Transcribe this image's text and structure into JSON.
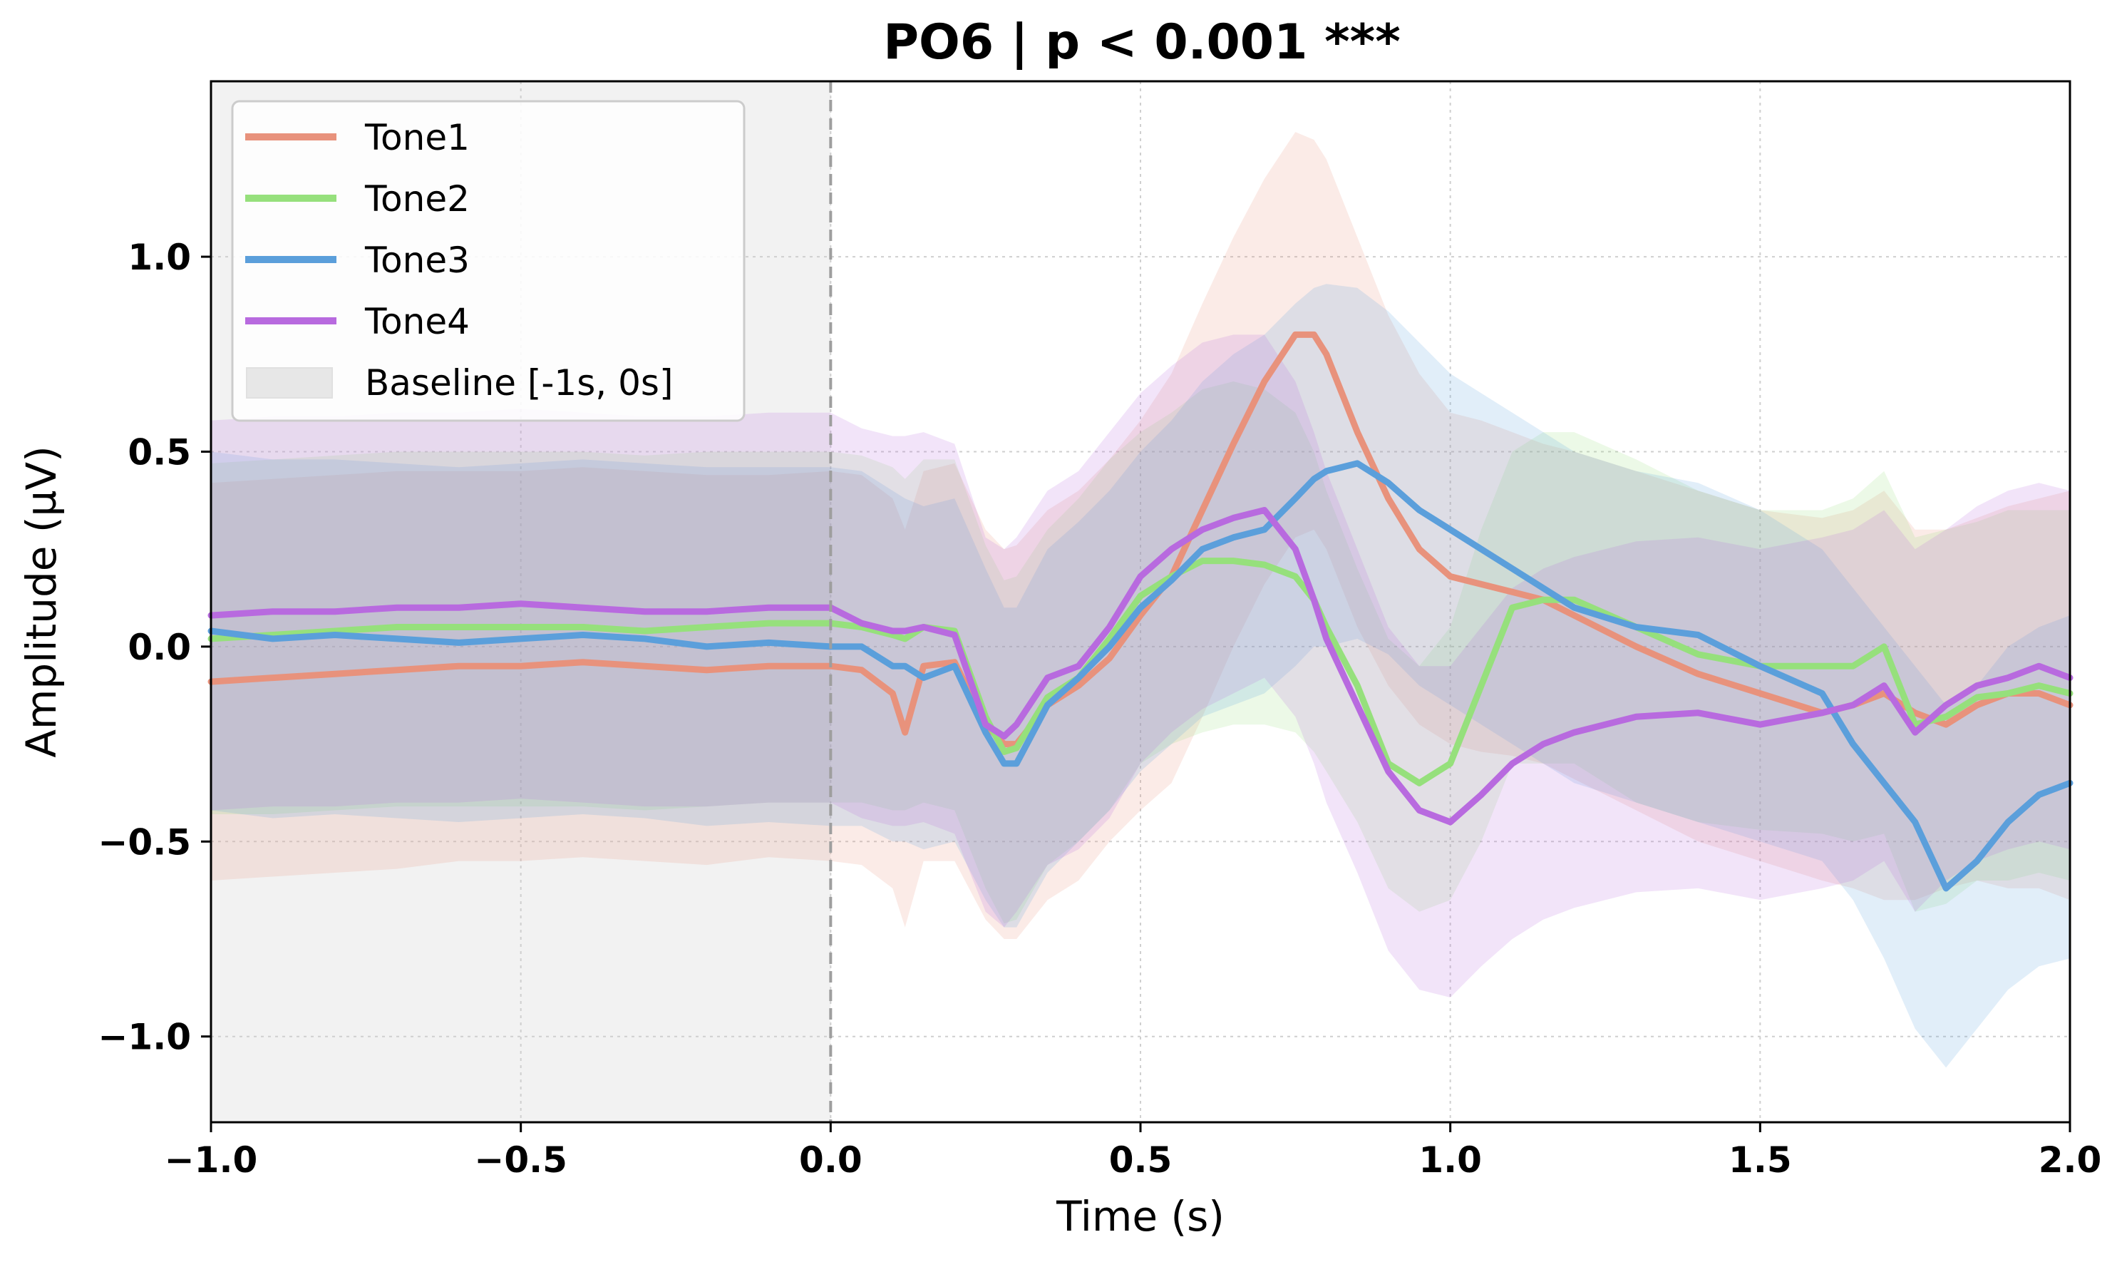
{
  "chart_data": {
    "type": "line",
    "title": "PO6 | p < 0.001 ***",
    "xlabel": "Time (s)",
    "ylabel": "Amplitude (µV)",
    "xlim": [
      -1.0,
      2.0
    ],
    "ylim": [
      -1.22,
      1.45
    ],
    "xticks": [
      -1.0,
      -0.5,
      0.0,
      0.5,
      1.0,
      1.5,
      2.0
    ],
    "xtick_labels": [
      "−1.0",
      "−0.5",
      "0.0",
      "0.5",
      "1.0",
      "1.5",
      "2.0"
    ],
    "yticks": [
      -1.0,
      -0.5,
      0.0,
      0.5,
      1.0
    ],
    "ytick_labels": [
      "−1.0",
      "−0.5",
      "0.0",
      "0.5",
      "1.0"
    ],
    "grid": true,
    "legend_position": "upper-left",
    "baseline": {
      "label": "Baseline [-1s, 0s]",
      "start": -1.0,
      "end": 0.0,
      "color": "#d9d9d9"
    },
    "event_line": {
      "x": 0.0,
      "style": "dashed",
      "color": "#9e9e9e"
    },
    "x": [
      -1.0,
      -0.9,
      -0.8,
      -0.7,
      -0.6,
      -0.5,
      -0.4,
      -0.3,
      -0.2,
      -0.1,
      0.0,
      0.05,
      0.1,
      0.12,
      0.15,
      0.2,
      0.25,
      0.28,
      0.3,
      0.35,
      0.4,
      0.45,
      0.5,
      0.55,
      0.6,
      0.65,
      0.7,
      0.75,
      0.78,
      0.8,
      0.85,
      0.9,
      0.95,
      1.0,
      1.05,
      1.1,
      1.15,
      1.2,
      1.3,
      1.4,
      1.5,
      1.6,
      1.65,
      1.7,
      1.75,
      1.8,
      1.85,
      1.9,
      1.95,
      2.0
    ],
    "series": [
      {
        "name": "Tone1",
        "color": "#e8927c",
        "values": [
          -0.09,
          -0.08,
          -0.07,
          -0.06,
          -0.05,
          -0.05,
          -0.04,
          -0.05,
          -0.06,
          -0.05,
          -0.05,
          -0.06,
          -0.12,
          -0.22,
          -0.05,
          -0.04,
          -0.2,
          -0.25,
          -0.25,
          -0.15,
          -0.1,
          -0.03,
          0.08,
          0.18,
          0.35,
          0.52,
          0.68,
          0.8,
          0.8,
          0.75,
          0.55,
          0.38,
          0.25,
          0.18,
          0.16,
          0.14,
          0.12,
          0.08,
          0.0,
          -0.07,
          -0.12,
          -0.17,
          -0.15,
          -0.12,
          -0.17,
          -0.2,
          -0.15,
          -0.12,
          -0.12,
          -0.15
        ],
        "upper": [
          0.42,
          0.43,
          0.44,
          0.45,
          0.45,
          0.45,
          0.46,
          0.45,
          0.44,
          0.44,
          0.45,
          0.44,
          0.38,
          0.3,
          0.45,
          0.47,
          0.3,
          0.25,
          0.26,
          0.35,
          0.4,
          0.48,
          0.58,
          0.7,
          0.88,
          1.05,
          1.2,
          1.32,
          1.3,
          1.25,
          1.05,
          0.85,
          0.7,
          0.6,
          0.58,
          0.55,
          0.52,
          0.5,
          0.45,
          0.4,
          0.35,
          0.33,
          0.35,
          0.4,
          0.3,
          0.3,
          0.33,
          0.36,
          0.38,
          0.4
        ],
        "lower": [
          -0.6,
          -0.59,
          -0.58,
          -0.57,
          -0.55,
          -0.55,
          -0.54,
          -0.55,
          -0.56,
          -0.54,
          -0.55,
          -0.56,
          -0.62,
          -0.72,
          -0.55,
          -0.55,
          -0.7,
          -0.75,
          -0.75,
          -0.65,
          -0.6,
          -0.5,
          -0.42,
          -0.35,
          -0.18,
          0.0,
          0.16,
          0.28,
          0.3,
          0.25,
          0.05,
          -0.1,
          -0.2,
          -0.25,
          -0.27,
          -0.28,
          -0.3,
          -0.34,
          -0.42,
          -0.5,
          -0.55,
          -0.6,
          -0.62,
          -0.65,
          -0.65,
          -0.62,
          -0.6,
          -0.62,
          -0.62,
          -0.65
        ]
      },
      {
        "name": "Tone2",
        "color": "#96e07c",
        "values": [
          0.02,
          0.03,
          0.04,
          0.05,
          0.05,
          0.05,
          0.05,
          0.04,
          0.05,
          0.06,
          0.06,
          0.05,
          0.03,
          0.02,
          0.05,
          0.04,
          -0.18,
          -0.27,
          -0.26,
          -0.13,
          -0.08,
          0.02,
          0.13,
          0.18,
          0.22,
          0.22,
          0.21,
          0.18,
          0.12,
          0.05,
          -0.1,
          -0.3,
          -0.35,
          -0.3,
          -0.1,
          0.1,
          0.12,
          0.12,
          0.05,
          -0.02,
          -0.05,
          -0.05,
          -0.05,
          0.0,
          -0.2,
          -0.18,
          -0.13,
          -0.12,
          -0.1,
          -0.12
        ],
        "upper": [
          0.47,
          0.48,
          0.49,
          0.5,
          0.5,
          0.5,
          0.5,
          0.49,
          0.5,
          0.5,
          0.5,
          0.49,
          0.46,
          0.43,
          0.48,
          0.48,
          0.26,
          0.17,
          0.18,
          0.3,
          0.38,
          0.48,
          0.55,
          0.6,
          0.66,
          0.68,
          0.66,
          0.6,
          0.5,
          0.4,
          0.2,
          0.02,
          -0.05,
          0.05,
          0.3,
          0.5,
          0.55,
          0.55,
          0.48,
          0.4,
          0.35,
          0.35,
          0.38,
          0.45,
          0.28,
          0.3,
          0.32,
          0.35,
          0.35,
          0.35
        ],
        "lower": [
          -0.43,
          -0.43,
          -0.42,
          -0.41,
          -0.41,
          -0.41,
          -0.41,
          -0.42,
          -0.41,
          -0.4,
          -0.4,
          -0.4,
          -0.42,
          -0.42,
          -0.4,
          -0.42,
          -0.62,
          -0.71,
          -0.7,
          -0.56,
          -0.5,
          -0.42,
          -0.3,
          -0.25,
          -0.22,
          -0.2,
          -0.2,
          -0.22,
          -0.27,
          -0.32,
          -0.45,
          -0.62,
          -0.68,
          -0.65,
          -0.5,
          -0.3,
          -0.3,
          -0.3,
          -0.4,
          -0.45,
          -0.47,
          -0.48,
          -0.5,
          -0.48,
          -0.68,
          -0.66,
          -0.6,
          -0.6,
          -0.58,
          -0.6
        ]
      },
      {
        "name": "Tone3",
        "color": "#5b9fdb",
        "values": [
          0.04,
          0.02,
          0.03,
          0.02,
          0.01,
          0.02,
          0.03,
          0.02,
          0.0,
          0.01,
          0.0,
          0.0,
          -0.05,
          -0.05,
          -0.08,
          -0.05,
          -0.22,
          -0.3,
          -0.3,
          -0.15,
          -0.08,
          0.0,
          0.1,
          0.17,
          0.25,
          0.28,
          0.3,
          0.38,
          0.43,
          0.45,
          0.47,
          0.42,
          0.35,
          0.3,
          0.25,
          0.2,
          0.15,
          0.1,
          0.05,
          0.03,
          -0.05,
          -0.12,
          -0.25,
          -0.35,
          -0.45,
          -0.62,
          -0.55,
          -0.45,
          -0.38,
          -0.35
        ],
        "upper": [
          0.5,
          0.48,
          0.48,
          0.47,
          0.46,
          0.47,
          0.48,
          0.47,
          0.46,
          0.46,
          0.46,
          0.45,
          0.4,
          0.38,
          0.36,
          0.38,
          0.2,
          0.1,
          0.1,
          0.25,
          0.32,
          0.4,
          0.5,
          0.58,
          0.68,
          0.75,
          0.8,
          0.88,
          0.92,
          0.93,
          0.92,
          0.86,
          0.78,
          0.7,
          0.65,
          0.6,
          0.55,
          0.5,
          0.45,
          0.42,
          0.35,
          0.25,
          0.15,
          0.05,
          -0.05,
          -0.15,
          -0.1,
          0.0,
          0.05,
          0.08
        ],
        "lower": [
          -0.42,
          -0.44,
          -0.43,
          -0.44,
          -0.45,
          -0.44,
          -0.43,
          -0.44,
          -0.46,
          -0.45,
          -0.46,
          -0.46,
          -0.5,
          -0.5,
          -0.52,
          -0.5,
          -0.65,
          -0.72,
          -0.72,
          -0.58,
          -0.5,
          -0.42,
          -0.32,
          -0.25,
          -0.18,
          -0.15,
          -0.12,
          -0.05,
          0.0,
          0.0,
          0.02,
          -0.02,
          -0.1,
          -0.15,
          -0.2,
          -0.25,
          -0.3,
          -0.35,
          -0.4,
          -0.45,
          -0.5,
          -0.55,
          -0.65,
          -0.8,
          -0.98,
          -1.08,
          -0.98,
          -0.88,
          -0.82,
          -0.8
        ]
      },
      {
        "name": "Tone4",
        "color": "#b86adf",
        "values": [
          0.08,
          0.09,
          0.09,
          0.1,
          0.1,
          0.11,
          0.1,
          0.09,
          0.09,
          0.1,
          0.1,
          0.06,
          0.04,
          0.04,
          0.05,
          0.03,
          -0.2,
          -0.23,
          -0.2,
          -0.08,
          -0.05,
          0.05,
          0.18,
          0.25,
          0.3,
          0.33,
          0.35,
          0.25,
          0.12,
          0.02,
          -0.15,
          -0.32,
          -0.42,
          -0.45,
          -0.38,
          -0.3,
          -0.25,
          -0.22,
          -0.18,
          -0.17,
          -0.2,
          -0.17,
          -0.15,
          -0.1,
          -0.22,
          -0.15,
          -0.1,
          -0.08,
          -0.05,
          -0.08
        ],
        "upper": [
          0.58,
          0.59,
          0.59,
          0.6,
          0.6,
          0.61,
          0.6,
          0.59,
          0.59,
          0.6,
          0.6,
          0.56,
          0.54,
          0.54,
          0.55,
          0.52,
          0.28,
          0.25,
          0.28,
          0.4,
          0.45,
          0.55,
          0.65,
          0.72,
          0.78,
          0.8,
          0.8,
          0.68,
          0.55,
          0.45,
          0.25,
          0.05,
          -0.05,
          -0.05,
          0.05,
          0.15,
          0.2,
          0.23,
          0.27,
          0.28,
          0.25,
          0.28,
          0.3,
          0.35,
          0.25,
          0.3,
          0.36,
          0.4,
          0.42,
          0.4
        ],
        "lower": [
          -0.42,
          -0.41,
          -0.41,
          -0.4,
          -0.4,
          -0.39,
          -0.4,
          -0.41,
          -0.41,
          -0.4,
          -0.4,
          -0.44,
          -0.46,
          -0.46,
          -0.45,
          -0.48,
          -0.68,
          -0.72,
          -0.68,
          -0.56,
          -0.52,
          -0.44,
          -0.3,
          -0.22,
          -0.16,
          -0.12,
          -0.08,
          -0.18,
          -0.3,
          -0.4,
          -0.58,
          -0.78,
          -0.88,
          -0.9,
          -0.82,
          -0.75,
          -0.7,
          -0.67,
          -0.63,
          -0.62,
          -0.65,
          -0.62,
          -0.6,
          -0.55,
          -0.68,
          -0.6,
          -0.55,
          -0.52,
          -0.5,
          -0.52
        ]
      }
    ]
  }
}
